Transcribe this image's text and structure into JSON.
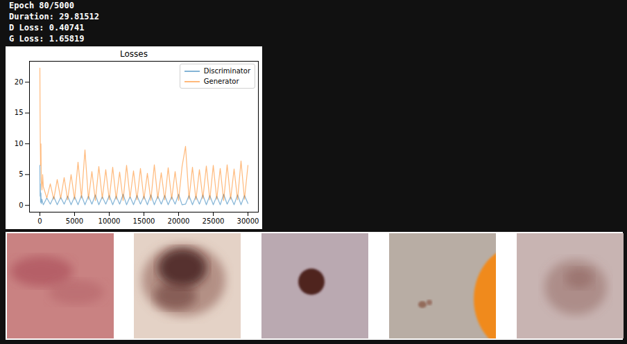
{
  "console": [
    "Epoch 80/5000",
    "Duration: 29.81512",
    "D Loss: 0.40741",
    "G Loss: 1.65819"
  ],
  "chart_data": {
    "type": "line",
    "title": "Losses",
    "x": [
      0,
      30,
      60,
      100,
      150,
      200,
      300,
      400,
      500,
      1000,
      1500,
      2000,
      2500,
      3000,
      3500,
      4000,
      4500,
      5000,
      5500,
      6000,
      6500,
      7000,
      7500,
      8000,
      8500,
      9000,
      9500,
      10000,
      10500,
      11000,
      11500,
      12000,
      12500,
      13000,
      13500,
      14000,
      14500,
      15000,
      15500,
      16000,
      16500,
      17000,
      17500,
      18000,
      18500,
      19000,
      19500,
      20000,
      20500,
      21000,
      21500,
      22000,
      22500,
      23000,
      23500,
      24000,
      24500,
      25000,
      25500,
      26000,
      26500,
      27000,
      27500,
      28000,
      28500,
      29000,
      29500,
      30000
    ],
    "series": [
      {
        "name": "Discriminator",
        "color": "#1f77b4",
        "values": [
          6.5,
          1.5,
          3.5,
          0.5,
          2.0,
          0.3,
          1.0,
          0.4,
          0.1,
          1.2,
          0.2,
          1.4,
          0.1,
          1.3,
          0.2,
          1.5,
          0.1,
          1.4,
          0.1,
          1.6,
          0.1,
          1.5,
          0.2,
          1.7,
          0.1,
          1.4,
          0.2,
          1.6,
          0.1,
          1.5,
          0.2,
          1.8,
          0.1,
          1.4,
          0.1,
          1.6,
          0.2,
          1.5,
          0.1,
          1.7,
          0.1,
          1.5,
          0.2,
          1.6,
          0.1,
          1.4,
          0.2,
          1.8,
          0.1,
          0.2,
          1.6,
          0.1,
          1.5,
          0.2,
          1.7,
          0.1,
          1.6,
          0.1,
          1.5,
          0.1,
          1.8,
          0.2,
          1.4,
          0.1,
          1.7,
          0.1,
          1.6,
          0.3
        ]
      },
      {
        "name": "Generator",
        "color": "#ff7f0e",
        "values": [
          22.3,
          15.0,
          10.2,
          6.5,
          10.0,
          4.0,
          2.5,
          5.0,
          3.0,
          1.2,
          3.5,
          1.0,
          4.2,
          1.1,
          4.5,
          0.9,
          5.0,
          1.0,
          7.0,
          1.2,
          9.0,
          1.0,
          5.5,
          0.8,
          6.3,
          1.1,
          5.8,
          0.9,
          6.2,
          1.0,
          5.4,
          0.8,
          6.5,
          1.2,
          5.6,
          0.9,
          6.0,
          1.0,
          5.2,
          0.8,
          6.6,
          1.1,
          5.3,
          0.9,
          6.1,
          1.0,
          5.5,
          0.8,
          6.3,
          9.6,
          1.0,
          6.2,
          0.9,
          5.8,
          1.1,
          6.4,
          0.9,
          6.5,
          1.0,
          6.0,
          0.8,
          6.6,
          1.0,
          5.9,
          0.9,
          7.2,
          1.0,
          6.5
        ]
      }
    ],
    "xlim": [
      -1500,
      31500
    ],
    "xticks": [
      0,
      5000,
      10000,
      15000,
      20000,
      25000,
      30000
    ],
    "ylim": [
      -1.1,
      23.4
    ],
    "yticks": [
      0,
      5,
      10,
      15,
      20
    ],
    "legend": "upper right"
  }
}
